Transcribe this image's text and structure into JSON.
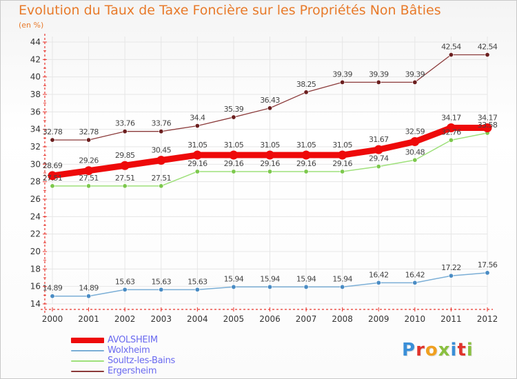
{
  "title": "Evolution du Taux de Taxe Foncière sur les Propriétés Non Bâties",
  "unit": "(en %)",
  "colors": {
    "axis": "#e8322a",
    "grid": "#e6e6e6",
    "tick_label": "#333333",
    "data_label": "#444444"
  },
  "logo": {
    "text": "Proxiti",
    "letters": [
      {
        "ch": "P",
        "color": "#3a8fd8"
      },
      {
        "ch": "r",
        "color": "#e0342c"
      },
      {
        "ch": "o",
        "color": "#f0a020"
      },
      {
        "ch": "x",
        "color": "#8ac040"
      },
      {
        "ch": "i",
        "color": "#3a8fd8"
      },
      {
        "ch": "t",
        "color": "#e0342c"
      },
      {
        "ch": "i",
        "color": "#8ac040"
      }
    ]
  },
  "chart_data": {
    "type": "line",
    "title": "Evolution du Taux de Taxe Foncière sur les Propriétés Non Bâties",
    "ylabel": "(en %)",
    "xlabel": "",
    "x": [
      "2000",
      "2001",
      "2002",
      "2003",
      "2004",
      "2005",
      "2006",
      "2007",
      "2008",
      "2009",
      "2010",
      "2011",
      "2012"
    ],
    "ylim": [
      14,
      44
    ],
    "yticks": [
      14,
      16,
      18,
      20,
      22,
      24,
      26,
      28,
      30,
      32,
      34,
      36,
      38,
      40,
      42,
      44
    ],
    "grid": true,
    "legend_position": "bottom-left",
    "series": [
      {
        "name": "Ergersheim",
        "color": "#8b3a3a",
        "marker_color": "#6b1f1f",
        "width": 1.3,
        "labels": [
          "32.78",
          "32.78",
          "33.76",
          "33.76",
          "34.4",
          "35.39",
          "36.43",
          "38.25",
          "39.39",
          "39.39",
          "39.39",
          "42.54",
          "42.54"
        ],
        "values": [
          32.78,
          32.78,
          33.76,
          33.76,
          34.4,
          35.39,
          36.43,
          38.25,
          39.39,
          39.39,
          39.39,
          42.54,
          42.54
        ]
      },
      {
        "name": "Soultz-les-Bains",
        "color": "#9ee07a",
        "marker_color": "#7cc84c",
        "width": 1.5,
        "labels": [
          "27.51",
          "27.51",
          "27.51",
          "27.51",
          "29.16",
          "29.16",
          "29.16",
          "29.16",
          "29.16",
          "29.74",
          "30.48",
          "32.76",
          "33.58"
        ],
        "values": [
          27.51,
          27.51,
          27.51,
          27.51,
          29.16,
          29.16,
          29.16,
          29.16,
          29.16,
          29.74,
          30.48,
          32.76,
          33.58
        ]
      },
      {
        "name": "Wolxheim",
        "color": "#7aaed6",
        "marker_color": "#4a8cc4",
        "width": 1.5,
        "labels": [
          "14.89",
          "14.89",
          "15.63",
          "15.63",
          "15.63",
          "15.94",
          "15.94",
          "15.94",
          "15.94",
          "16.42",
          "16.42",
          "17.22",
          "17.56"
        ],
        "values": [
          14.89,
          14.89,
          15.63,
          15.63,
          15.63,
          15.94,
          15.94,
          15.94,
          15.94,
          16.42,
          16.42,
          17.22,
          17.56
        ]
      },
      {
        "name": "AVOLSHEIM",
        "color": "#ee0a0a",
        "marker_color": "#ee0a0a",
        "width": 9,
        "labels": [
          "28.69",
          "29.26",
          "29.85",
          "30.45",
          "31.05",
          "31.05",
          "31.05",
          "31.05",
          "31.05",
          "31.67",
          "32.59",
          "34.17",
          "34.17"
        ],
        "values": [
          28.69,
          29.26,
          29.85,
          30.45,
          31.05,
          31.05,
          31.05,
          31.05,
          31.05,
          31.67,
          32.59,
          34.17,
          34.17
        ]
      }
    ],
    "legend": [
      "AVOLSHEIM",
      "Wolxheim",
      "Soultz-les-Bains",
      "Ergersheim"
    ]
  }
}
